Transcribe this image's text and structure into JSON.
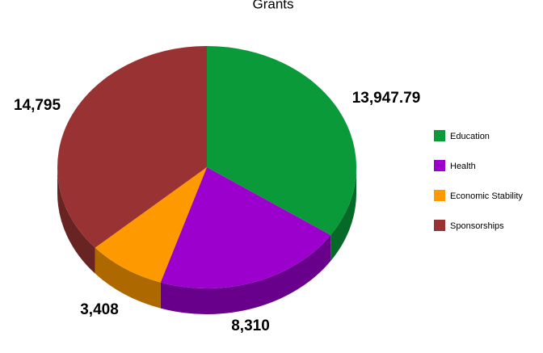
{
  "chart_data": {
    "type": "pie",
    "title": "Grants",
    "categories": [
      "Education",
      "Health",
      "Economic Stability",
      "Sponsorships"
    ],
    "values": [
      13947.79,
      8310,
      3408,
      14795
    ],
    "value_labels": [
      "13,947.79",
      "8,310",
      "3,408",
      "14,795"
    ],
    "colors": [
      "#0a9a3a",
      "#9b00cc",
      "#ff9900",
      "#993333"
    ],
    "legend": "right"
  }
}
